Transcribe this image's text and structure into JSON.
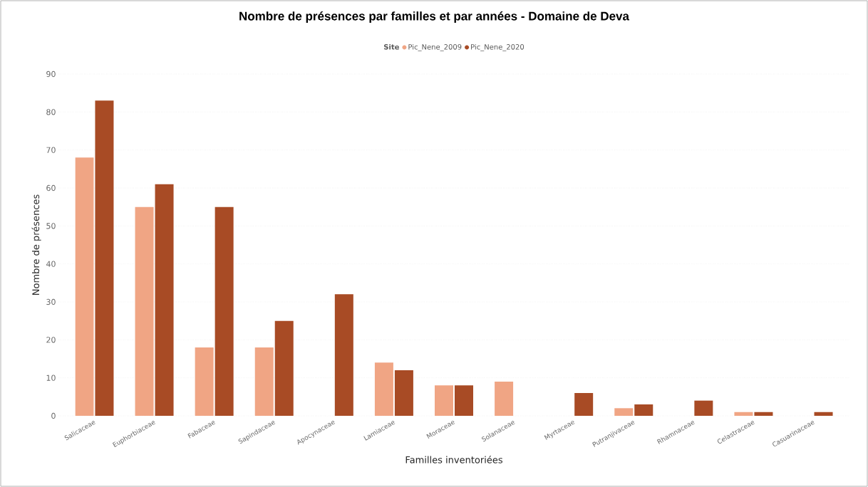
{
  "chart_data": {
    "type": "bar",
    "title": "Nombre de présences par familles et par années - Domaine de Deva",
    "xlabel": "Familles inventoriées",
    "ylabel": "Nombre de présences",
    "legend_title": "Site",
    "categories": [
      "Salicaceae",
      "Euphorbiaceae",
      "Fabaceae",
      "Sapindaceae",
      "Apocynaceae",
      "Lamiaceae",
      "Moraceae",
      "Solanaceae",
      "Myrtaceae",
      "Putranjivaceae",
      "Rhamnaceae",
      "Celastraceae",
      "Casuarinaceae"
    ],
    "series": [
      {
        "name": "Pic_Nene_2009",
        "color": "#f0a584",
        "values": [
          68,
          55,
          18,
          18,
          null,
          14,
          8,
          9,
          null,
          2,
          null,
          1,
          null
        ]
      },
      {
        "name": "Pic_Nene_2020",
        "color": "#a84b25",
        "values": [
          83,
          61,
          55,
          25,
          32,
          12,
          8,
          null,
          6,
          3,
          4,
          1,
          1
        ]
      }
    ],
    "ylim": [
      0,
      90
    ],
    "yticks": [
      0,
      10,
      20,
      30,
      40,
      50,
      60,
      70,
      80,
      90
    ],
    "grid": "y",
    "legend": "top"
  }
}
